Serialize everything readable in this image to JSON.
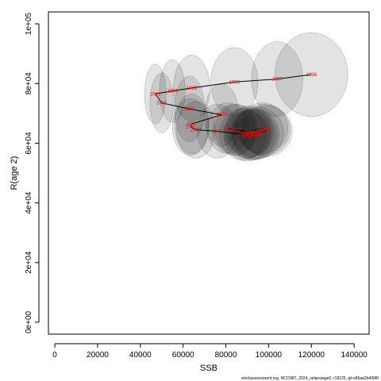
{
  "chart_data": {
    "type": "scatter",
    "title": "",
    "xlabel": "SSB",
    "ylabel": "R(age 2)",
    "xlim": [
      -3000,
      147000
    ],
    "ylim": [
      -4000,
      104000
    ],
    "xticks": [
      0,
      20000,
      40000,
      60000,
      80000,
      100000,
      120000,
      140000
    ],
    "xtick_labels": [
      "0",
      "20000",
      "40000",
      "60000",
      "80000",
      "100000",
      "120000",
      "140000"
    ],
    "yticks": [
      0,
      20000,
      40000,
      60000,
      80000,
      100000
    ],
    "ytick_labels": [
      "0e+00",
      "2e+04",
      "4e+04",
      "6e+04",
      "8e+04",
      "1e+05"
    ],
    "grid": false,
    "legend": "none",
    "path_color": "#000000",
    "label_color": "#ff0000",
    "ellipse_fill": "#000000",
    "series": [
      {
        "points": [
          {
            "label": "1996",
            "x": 120000,
            "y": 83000,
            "sx": 17000,
            "sy": 14000
          },
          {
            "label": "1997",
            "x": 104000,
            "y": 81500,
            "sx": 12000,
            "sy": 12500
          },
          {
            "label": "1998",
            "x": 84000,
            "y": 80500,
            "sx": 11000,
            "sy": 11500
          },
          {
            "label": "1999",
            "x": 64000,
            "y": 78500,
            "sx": 8500,
            "sy": 11000
          },
          {
            "label": "2000",
            "x": 55000,
            "y": 77500,
            "sx": 6000,
            "sy": 10500
          },
          {
            "label": "2001",
            "x": 47000,
            "y": 76500,
            "sx": 5000,
            "sy": 10000
          },
          {
            "label": "2002",
            "x": 50000,
            "y": 73500,
            "sx": 5500,
            "sy": 10000
          },
          {
            "label": "2003",
            "x": 63000,
            "y": 71500,
            "sx": 7000,
            "sy": 11000
          },
          {
            "label": "2004",
            "x": 78000,
            "y": 69500,
            "sx": 8000,
            "sy": 10500
          },
          {
            "label": "2005",
            "x": 64000,
            "y": 66500,
            "sx": 8000,
            "sy": 10000
          },
          {
            "label": "2006",
            "x": 63500,
            "y": 65500,
            "sx": 8500,
            "sy": 9500
          },
          {
            "label": "2007",
            "x": 66000,
            "y": 64500,
            "sx": 9000,
            "sy": 9500
          },
          {
            "label": "2008",
            "x": 76000,
            "y": 64000,
            "sx": 9500,
            "sy": 9000
          },
          {
            "label": "2009",
            "x": 88000,
            "y": 63000,
            "sx": 11000,
            "sy": 8500
          },
          {
            "label": "2010",
            "x": 95000,
            "y": 63500,
            "sx": 12000,
            "sy": 8500
          },
          {
            "label": "2011",
            "x": 99000,
            "y": 64000,
            "sx": 12000,
            "sy": 8500
          },
          {
            "label": "2012",
            "x": 98000,
            "y": 64500,
            "sx": 12000,
            "sy": 8500
          },
          {
            "label": "2013",
            "x": 97000,
            "y": 65000,
            "sx": 12000,
            "sy": 8500
          },
          {
            "label": "2014",
            "x": 91000,
            "y": 64000,
            "sx": 11000,
            "sy": 8500
          },
          {
            "label": "2015",
            "x": 84000,
            "y": 64500,
            "sx": 10000,
            "sy": 8500
          },
          {
            "label": "2016",
            "x": 81000,
            "y": 65000,
            "sx": 10000,
            "sy": 8500
          },
          {
            "label": "2017",
            "x": 85000,
            "y": 64500,
            "sx": 10000,
            "sy": 8500
          },
          {
            "label": "2018",
            "x": 90000,
            "y": 63500,
            "sx": 11000,
            "sy": 8500
          },
          {
            "label": "2019",
            "x": 93000,
            "y": 63000,
            "sx": 11000,
            "sy": 8500
          },
          {
            "label": "2020",
            "x": 94000,
            "y": 63000,
            "sx": 11000,
            "sy": 8500
          },
          {
            "label": "2021",
            "x": 90000,
            "y": 62500,
            "sx": 11000,
            "sy": 8500
          },
          {
            "label": "2022",
            "x": 92000,
            "y": 63000,
            "sx": 11000,
            "sy": 8500
          }
        ]
      }
    ]
  },
  "credit": "stockassessment.org, NCCN87_2024_selaestage5, r18125, git:e86aa2b499f0"
}
